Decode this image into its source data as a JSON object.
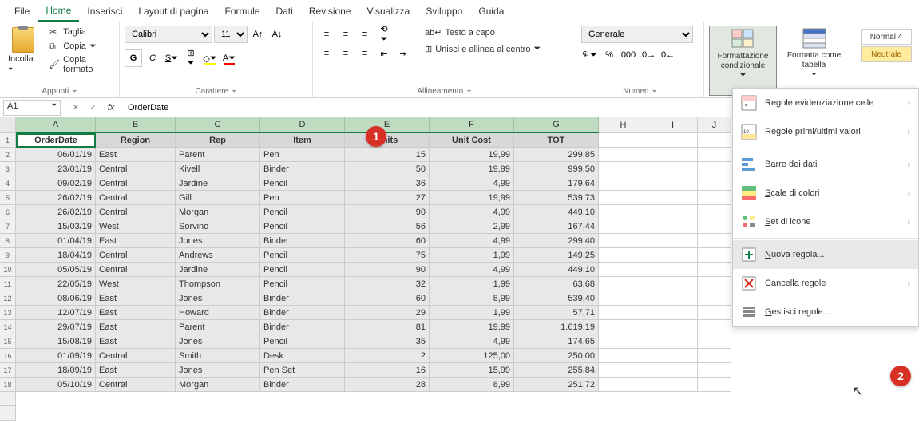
{
  "tabs": {
    "file": "File",
    "home": "Home",
    "insert": "Inserisci",
    "layout": "Layout di pagina",
    "formulas": "Formule",
    "data": "Dati",
    "review": "Revisione",
    "view": "Visualizza",
    "dev": "Sviluppo",
    "help": "Guida"
  },
  "ribbon": {
    "paste": "Incolla",
    "cut": "Taglia",
    "copy": "Copia",
    "format_painter": "Copia formato",
    "clipboard_title": "Appunti",
    "font_name": "Calibri",
    "font_size": "11",
    "font_title": "Carattere",
    "wrap_text": "Testo a capo",
    "merge_center": "Unisci e allinea al centro",
    "alignment_title": "Allineamento",
    "number_format": "Generale",
    "number_title": "Numeri",
    "cond_format": "Formattazione condizionale",
    "format_table": "Formatta come tabella",
    "normal4": "Normal 4",
    "neutrale": "Neutrale"
  },
  "formula_bar": {
    "cell_ref": "A1",
    "formula": "OrderDate"
  },
  "columns": [
    "A",
    "B",
    "C",
    "D",
    "E",
    "F",
    "G",
    "H",
    "I",
    "J"
  ],
  "headers": [
    "OrderDate",
    "Region",
    "Rep",
    "Item",
    "Units",
    "Unit Cost",
    "TOT"
  ],
  "rows": [
    [
      "06/01/19",
      "East",
      "Parent",
      "Pen",
      "15",
      "19,99",
      "299,85"
    ],
    [
      "23/01/19",
      "Central",
      "Kivell",
      "Binder",
      "50",
      "19,99",
      "999,50"
    ],
    [
      "09/02/19",
      "Central",
      "Jardine",
      "Pencil",
      "36",
      "4,99",
      "179,64"
    ],
    [
      "26/02/19",
      "Central",
      "Gill",
      "Pen",
      "27",
      "19,99",
      "539,73"
    ],
    [
      "26/02/19",
      "Central",
      "Morgan",
      "Pencil",
      "90",
      "4,99",
      "449,10"
    ],
    [
      "15/03/19",
      "West",
      "Sorvino",
      "Pencil",
      "56",
      "2,99",
      "167,44"
    ],
    [
      "01/04/19",
      "East",
      "Jones",
      "Binder",
      "60",
      "4,99",
      "299,40"
    ],
    [
      "18/04/19",
      "Central",
      "Andrews",
      "Pencil",
      "75",
      "1,99",
      "149,25"
    ],
    [
      "05/05/19",
      "Central",
      "Jardine",
      "Pencil",
      "90",
      "4,99",
      "449,10"
    ],
    [
      "22/05/19",
      "West",
      "Thompson",
      "Pencil",
      "32",
      "1,99",
      "63,68"
    ],
    [
      "08/06/19",
      "East",
      "Jones",
      "Binder",
      "60",
      "8,99",
      "539,40"
    ],
    [
      "12/07/19",
      "East",
      "Howard",
      "Binder",
      "29",
      "1,99",
      "57,71"
    ],
    [
      "29/07/19",
      "East",
      "Parent",
      "Binder",
      "81",
      "19,99",
      "1.619,19"
    ],
    [
      "15/08/19",
      "East",
      "Jones",
      "Pencil",
      "35",
      "4,99",
      "174,65"
    ],
    [
      "01/09/19",
      "Central",
      "Smith",
      "Desk",
      "2",
      "125,00",
      "250,00"
    ],
    [
      "18/09/19",
      "East",
      "Jones",
      "Pen Set",
      "16",
      "15,99",
      "255,84"
    ],
    [
      "05/10/19",
      "Central",
      "Morgan",
      "Binder",
      "28",
      "8,99",
      "251,72"
    ]
  ],
  "dropdown": {
    "highlight": "Regole evidenziazione celle",
    "top_bottom": "Regole primi/ultimi valori",
    "data_bars": "Barre dei dati",
    "color_scales": "Scale di colori",
    "icon_sets": "Set di icone",
    "new_rule": "Nuova regola...",
    "clear_rules": "Cancella regole",
    "manage_rules": "Gestisci regole..."
  },
  "markers": {
    "m1": "1",
    "m2": "2"
  },
  "colors": {
    "excel_green": "#107c41",
    "sel_bg": "#e8e8e8",
    "col_header_sel": "#d4ead4"
  }
}
